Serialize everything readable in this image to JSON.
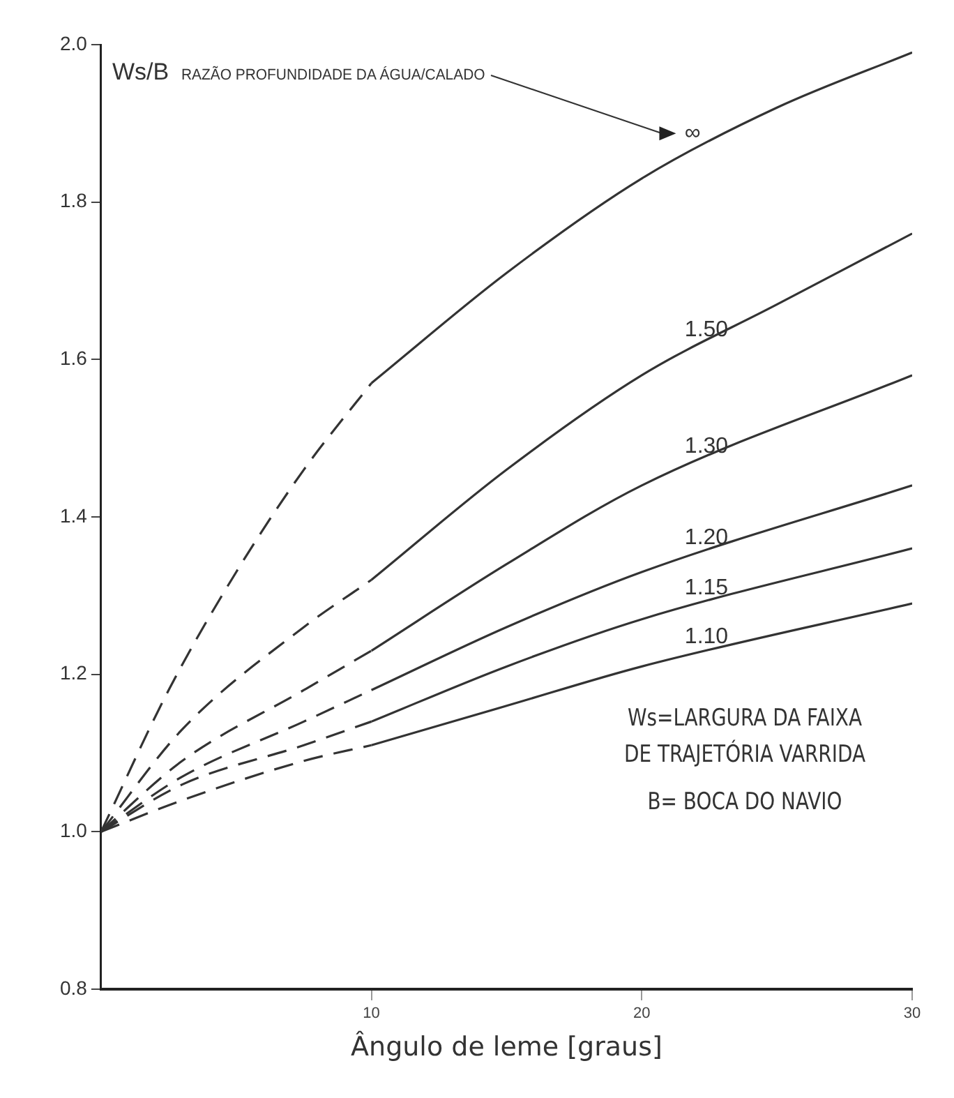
{
  "chart_data": {
    "type": "line",
    "xlabel": "Ângulo de leme [graus]",
    "ylabel": "Ws/B",
    "xlim": [
      0,
      30
    ],
    "xticks": [
      10,
      20,
      30
    ],
    "ylim": [
      0.8,
      2.0
    ],
    "yticks": [
      {
        "value": 0.8,
        "label": "0.8"
      },
      {
        "value": 1.0,
        "label": "1.0"
      },
      {
        "value": 1.2,
        "label": "1.2"
      },
      {
        "value": 1.4,
        "label": "1.4"
      },
      {
        "value": 1.6,
        "label": "1.6"
      },
      {
        "value": 1.8,
        "label": "1.8"
      },
      {
        "value": 2.0,
        "label": "2.0"
      }
    ],
    "grid": false,
    "legend": false,
    "marker": "none",
    "series": [
      {
        "color": "#333333",
        "line_style": "dashed",
        "x": [
          0,
          2.5,
          5,
          7.5,
          10
        ],
        "values": [
          1.0,
          1.18,
          1.33,
          1.46,
          1.57
        ]
      },
      {
        "name": "∞",
        "color": "#333333",
        "line_style": "solid",
        "x": [
          10,
          15,
          20,
          25,
          30
        ],
        "values": [
          1.57,
          1.71,
          1.83,
          1.92,
          1.99
        ]
      },
      {
        "color": "#333333",
        "line_style": "dashed",
        "x": [
          0,
          3,
          7.5,
          10
        ],
        "values": [
          1.0,
          1.13,
          1.26,
          1.32
        ]
      },
      {
        "name": "1.50",
        "color": "#333333",
        "line_style": "solid",
        "x": [
          10,
          15,
          20,
          25,
          30
        ],
        "values": [
          1.32,
          1.46,
          1.58,
          1.67,
          1.76
        ]
      },
      {
        "color": "#333333",
        "line_style": "dashed",
        "x": [
          0,
          3,
          7.5,
          10
        ],
        "values": [
          1.0,
          1.09,
          1.18,
          1.23
        ]
      },
      {
        "name": "1.30",
        "color": "#333333",
        "line_style": "solid",
        "x": [
          10,
          15,
          20,
          30
        ],
        "values": [
          1.23,
          1.34,
          1.44,
          1.58
        ]
      },
      {
        "color": "#333333",
        "line_style": "dashed",
        "x": [
          0,
          3,
          7.5,
          10
        ],
        "values": [
          1.0,
          1.07,
          1.14,
          1.18
        ]
      },
      {
        "name": "1.20",
        "color": "#333333",
        "line_style": "solid",
        "x": [
          10,
          15,
          20,
          30
        ],
        "values": [
          1.18,
          1.26,
          1.33,
          1.44
        ]
      },
      {
        "color": "#333333",
        "line_style": "dashed",
        "x": [
          0,
          3,
          7.5,
          10
        ],
        "values": [
          1.0,
          1.06,
          1.11,
          1.14
        ]
      },
      {
        "name": "1.15",
        "color": "#333333",
        "line_style": "solid",
        "x": [
          10,
          15,
          20,
          30
        ],
        "values": [
          1.14,
          1.21,
          1.27,
          1.36
        ]
      },
      {
        "color": "#333333",
        "line_style": "dashed",
        "x": [
          0,
          3,
          7.5,
          10
        ],
        "values": [
          1.0,
          1.04,
          1.09,
          1.11
        ]
      },
      {
        "name": "1.10",
        "color": "#333333",
        "line_style": "solid",
        "x": [
          10,
          15,
          20,
          30
        ],
        "values": [
          1.11,
          1.16,
          1.21,
          1.29
        ]
      }
    ],
    "annotations": [
      "RAZÃO PROFUNDIDADE DA ÁGUA/CALADO",
      "Ws=LARGURA DA FAIXA DE TRAJETÓRIA VARRIDA",
      "B= BOCA DO NAVIO"
    ]
  }
}
